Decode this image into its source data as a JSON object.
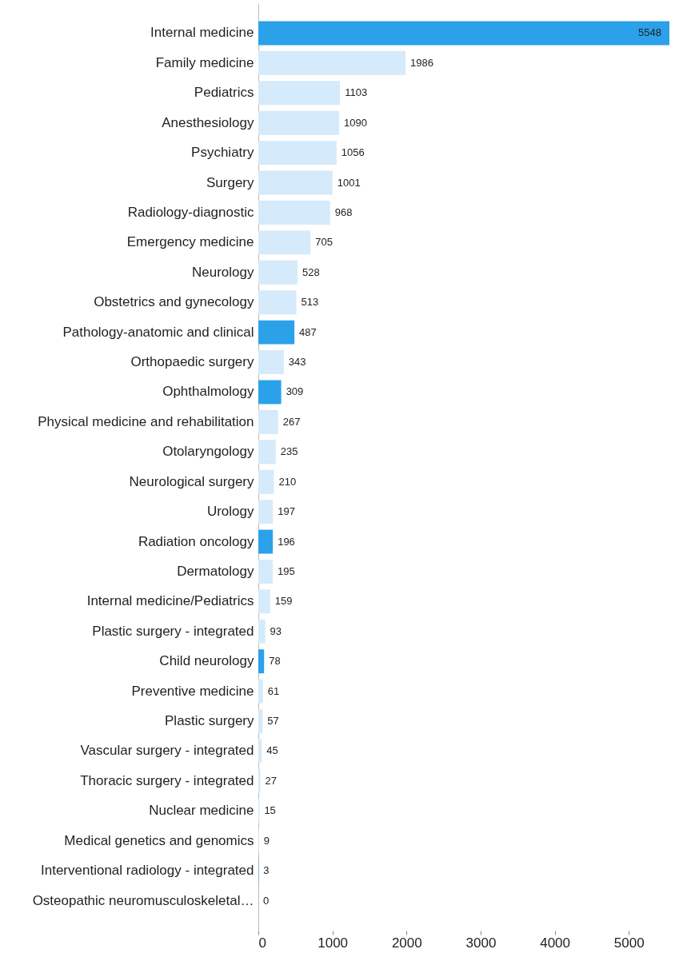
{
  "chart_data": {
    "type": "bar",
    "orientation": "horizontal",
    "categories": [
      "Internal medicine",
      "Family medicine",
      "Pediatrics",
      "Anesthesiology",
      "Psychiatry",
      "Surgery",
      "Radiology-diagnostic",
      "Emergency medicine",
      "Neurology",
      "Obstetrics and gynecology",
      "Pathology-anatomic and clinical",
      "Orthopaedic surgery",
      "Ophthalmology",
      "Physical medicine and rehabilitation",
      "Otolaryngology",
      "Neurological surgery",
      "Urology",
      "Radiation oncology",
      "Dermatology",
      "Internal medicine/Pediatrics",
      "Plastic surgery - integrated",
      "Child neurology",
      "Preventive medicine",
      "Plastic surgery",
      "Vascular surgery - integrated",
      "Thoracic surgery - integrated",
      "Nuclear medicine",
      "Medical genetics and genomics",
      "Interventional radiology - integrated",
      "Osteopathic neuromusculoskeletal…"
    ],
    "values": [
      5548,
      1986,
      1103,
      1090,
      1056,
      1001,
      968,
      705,
      528,
      513,
      487,
      343,
      309,
      267,
      235,
      210,
      197,
      196,
      195,
      159,
      93,
      78,
      61,
      57,
      45,
      27,
      15,
      9,
      3,
      0
    ],
    "colors": [
      "#2ba1ea",
      "#d5eafa",
      "#d5eafa",
      "#d5eafa",
      "#d5eafa",
      "#d5eafa",
      "#d5eafa",
      "#d5eafa",
      "#d5eafa",
      "#d5eafa",
      "#2ba1ea",
      "#d5eafa",
      "#2ba1ea",
      "#d5eafa",
      "#d5eafa",
      "#d5eafa",
      "#d5eafa",
      "#2ba1ea",
      "#d5eafa",
      "#d5eafa",
      "#d5eafa",
      "#2ba1ea",
      "#d5eafa",
      "#d5eafa",
      "#d5eafa",
      "#d5eafa",
      "#d5eafa",
      "#d5eafa",
      "#2ba1ea",
      "#d5eafa"
    ],
    "xlim": [
      0,
      5548
    ],
    "xticks": [
      0,
      1000,
      2000,
      3000,
      4000,
      5000
    ],
    "data_labels": true,
    "grid": false
  }
}
